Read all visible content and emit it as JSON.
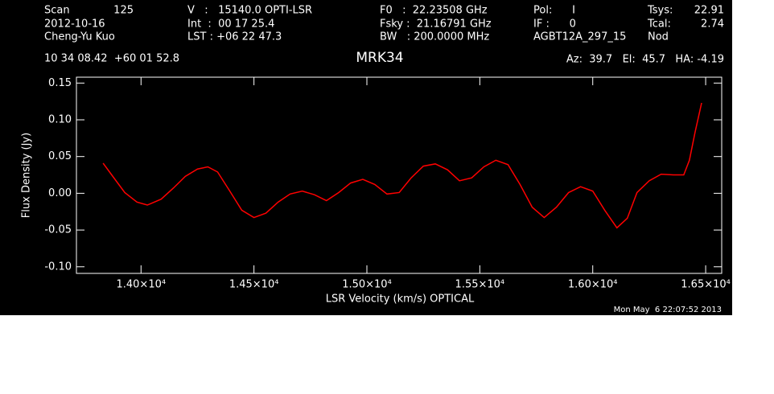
{
  "header": {
    "scan_label": "Scan",
    "scan": "125",
    "date": "2012-10-16",
    "observer": "Cheng-Yu Kuo",
    "velocity": "V   :   15140.0 OPTI-LSR",
    "int": "Int  :  00 17 25.4",
    "lst": "LST : +06 22 47.3",
    "f0": "F0   :  22.23508 GHz",
    "fsky": "Fsky :  21.16791 GHz",
    "bw": "BW   : 200.0000 MHz",
    "pol": "Pol:      I",
    "if": "IF :      0",
    "project": "AGBT12A_297_15",
    "tsys_label": "Tsys:",
    "tsys": "22.91",
    "tcal_label": "Tcal:",
    "tcal": "2.74",
    "procedure": "Nod",
    "coords": "10 34 08.42  +60 01 52.8",
    "azelha": "Az:  39.7   El:  45.7   HA: -4.19",
    "timestamp": "Mon May  6 22:07:52 2013"
  },
  "chart_data": {
    "type": "line",
    "title": "MRK34",
    "x_label": "LSR Velocity (km/s) OPTICAL",
    "y_label": "Flux Density (Jy)",
    "xlim": [
      13714,
      16571
    ],
    "ylim": [
      -0.109,
      0.158
    ],
    "xticks": [
      {
        "value": 14000,
        "label": "1.40×10⁴"
      },
      {
        "value": 14500,
        "label": "1.45×10⁴"
      },
      {
        "value": 15000,
        "label": "1.50×10⁴"
      },
      {
        "value": 15500,
        "label": "1.55×10⁴"
      },
      {
        "value": 16000,
        "label": "1.60×10⁴"
      },
      {
        "value": 16500,
        "label": "1.65×10⁴"
      }
    ],
    "yticks": [
      {
        "value": -0.1,
        "label": "-0.10"
      },
      -0.05,
      {
        "value": 0,
        "label": "0.00"
      },
      0.05,
      {
        "value": 0.1,
        "label": "0.10"
      },
      0.15
    ],
    "x": [
      13832,
      13875,
      13928,
      13982,
      14028,
      14089,
      14143,
      14196,
      14250,
      14296,
      14339,
      14393,
      14446,
      14500,
      14553,
      14607,
      14660,
      14714,
      14768,
      14821,
      14875,
      14928,
      14982,
      15035,
      15089,
      15143,
      15196,
      15250,
      15303,
      15357,
      15410,
      15464,
      15518,
      15571,
      15625,
      15678,
      15732,
      15785,
      15839,
      15893,
      15946,
      16000,
      16053,
      16107,
      16153,
      16196,
      16250,
      16303,
      16357,
      16403,
      16428,
      16453,
      16482
    ],
    "series": [
      {
        "color": "#ff0000",
        "values": [
          0.041,
          0.023,
          0.001,
          -0.012,
          -0.016,
          -0.008,
          0.007,
          0.023,
          0.033,
          0.036,
          0.029,
          0.003,
          -0.023,
          -0.033,
          -0.027,
          -0.012,
          -0.001,
          0.003,
          -0.002,
          -0.01,
          0.001,
          0.014,
          0.019,
          0.012,
          -0.001,
          0.001,
          0.021,
          0.037,
          0.04,
          0.032,
          0.017,
          0.021,
          0.036,
          0.045,
          0.039,
          0.012,
          -0.019,
          -0.033,
          -0.019,
          0.001,
          0.009,
          0.003,
          -0.023,
          -0.047,
          -0.034,
          0.001,
          0.017,
          0.026,
          0.025,
          0.025,
          0.045,
          0.083,
          0.123
        ]
      }
    ]
  }
}
